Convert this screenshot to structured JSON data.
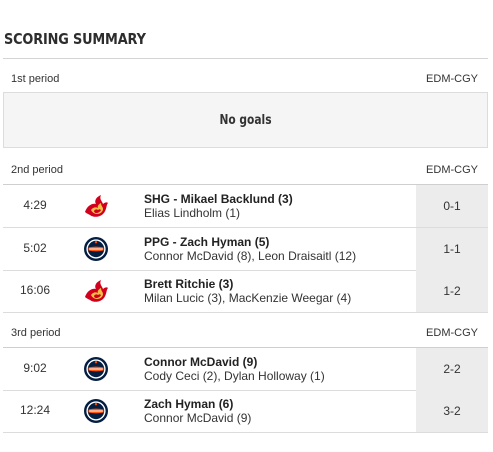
{
  "title": "SCORING SUMMARY",
  "periods": [
    {
      "name": "1st period",
      "score_label": "EDM-CGY",
      "no_goals": "No goals"
    },
    {
      "name": "2nd period",
      "score_label": "EDM-CGY",
      "goals": [
        {
          "time": "4:29",
          "team": "calgary-flames-logo",
          "scorer": "SHG - Mikael Backlund (3)",
          "assists": "Elias Lindholm (1)",
          "score": "0-1"
        },
        {
          "time": "5:02",
          "team": "edmonton-oilers-logo",
          "scorer": "PPG - Zach Hyman (5)",
          "assists": "Connor McDavid (8), Leon Draisaitl (12)",
          "score": "1-1"
        },
        {
          "time": "16:06",
          "team": "calgary-flames-logo",
          "scorer": "Brett Ritchie (3)",
          "assists": "Milan Lucic (3), MacKenzie Weegar (4)",
          "score": "1-2"
        }
      ]
    },
    {
      "name": "3rd period",
      "score_label": "EDM-CGY",
      "goals": [
        {
          "time": "9:02",
          "team": "edmonton-oilers-logo",
          "scorer": "Connor McDavid (9)",
          "assists": "Cody Ceci (2), Dylan Holloway (1)",
          "score": "2-2"
        },
        {
          "time": "12:24",
          "team": "edmonton-oilers-logo",
          "scorer": "Zach Hyman (6)",
          "assists": "Connor McDavid (9)",
          "score": "3-2"
        }
      ]
    }
  ],
  "colors": {
    "flames_red": "#d2001c",
    "flames_yellow": "#f1be48",
    "oilers_blue": "#041e42",
    "oilers_orange": "#fc4c02",
    "score_cell_bg": "#ececec"
  }
}
